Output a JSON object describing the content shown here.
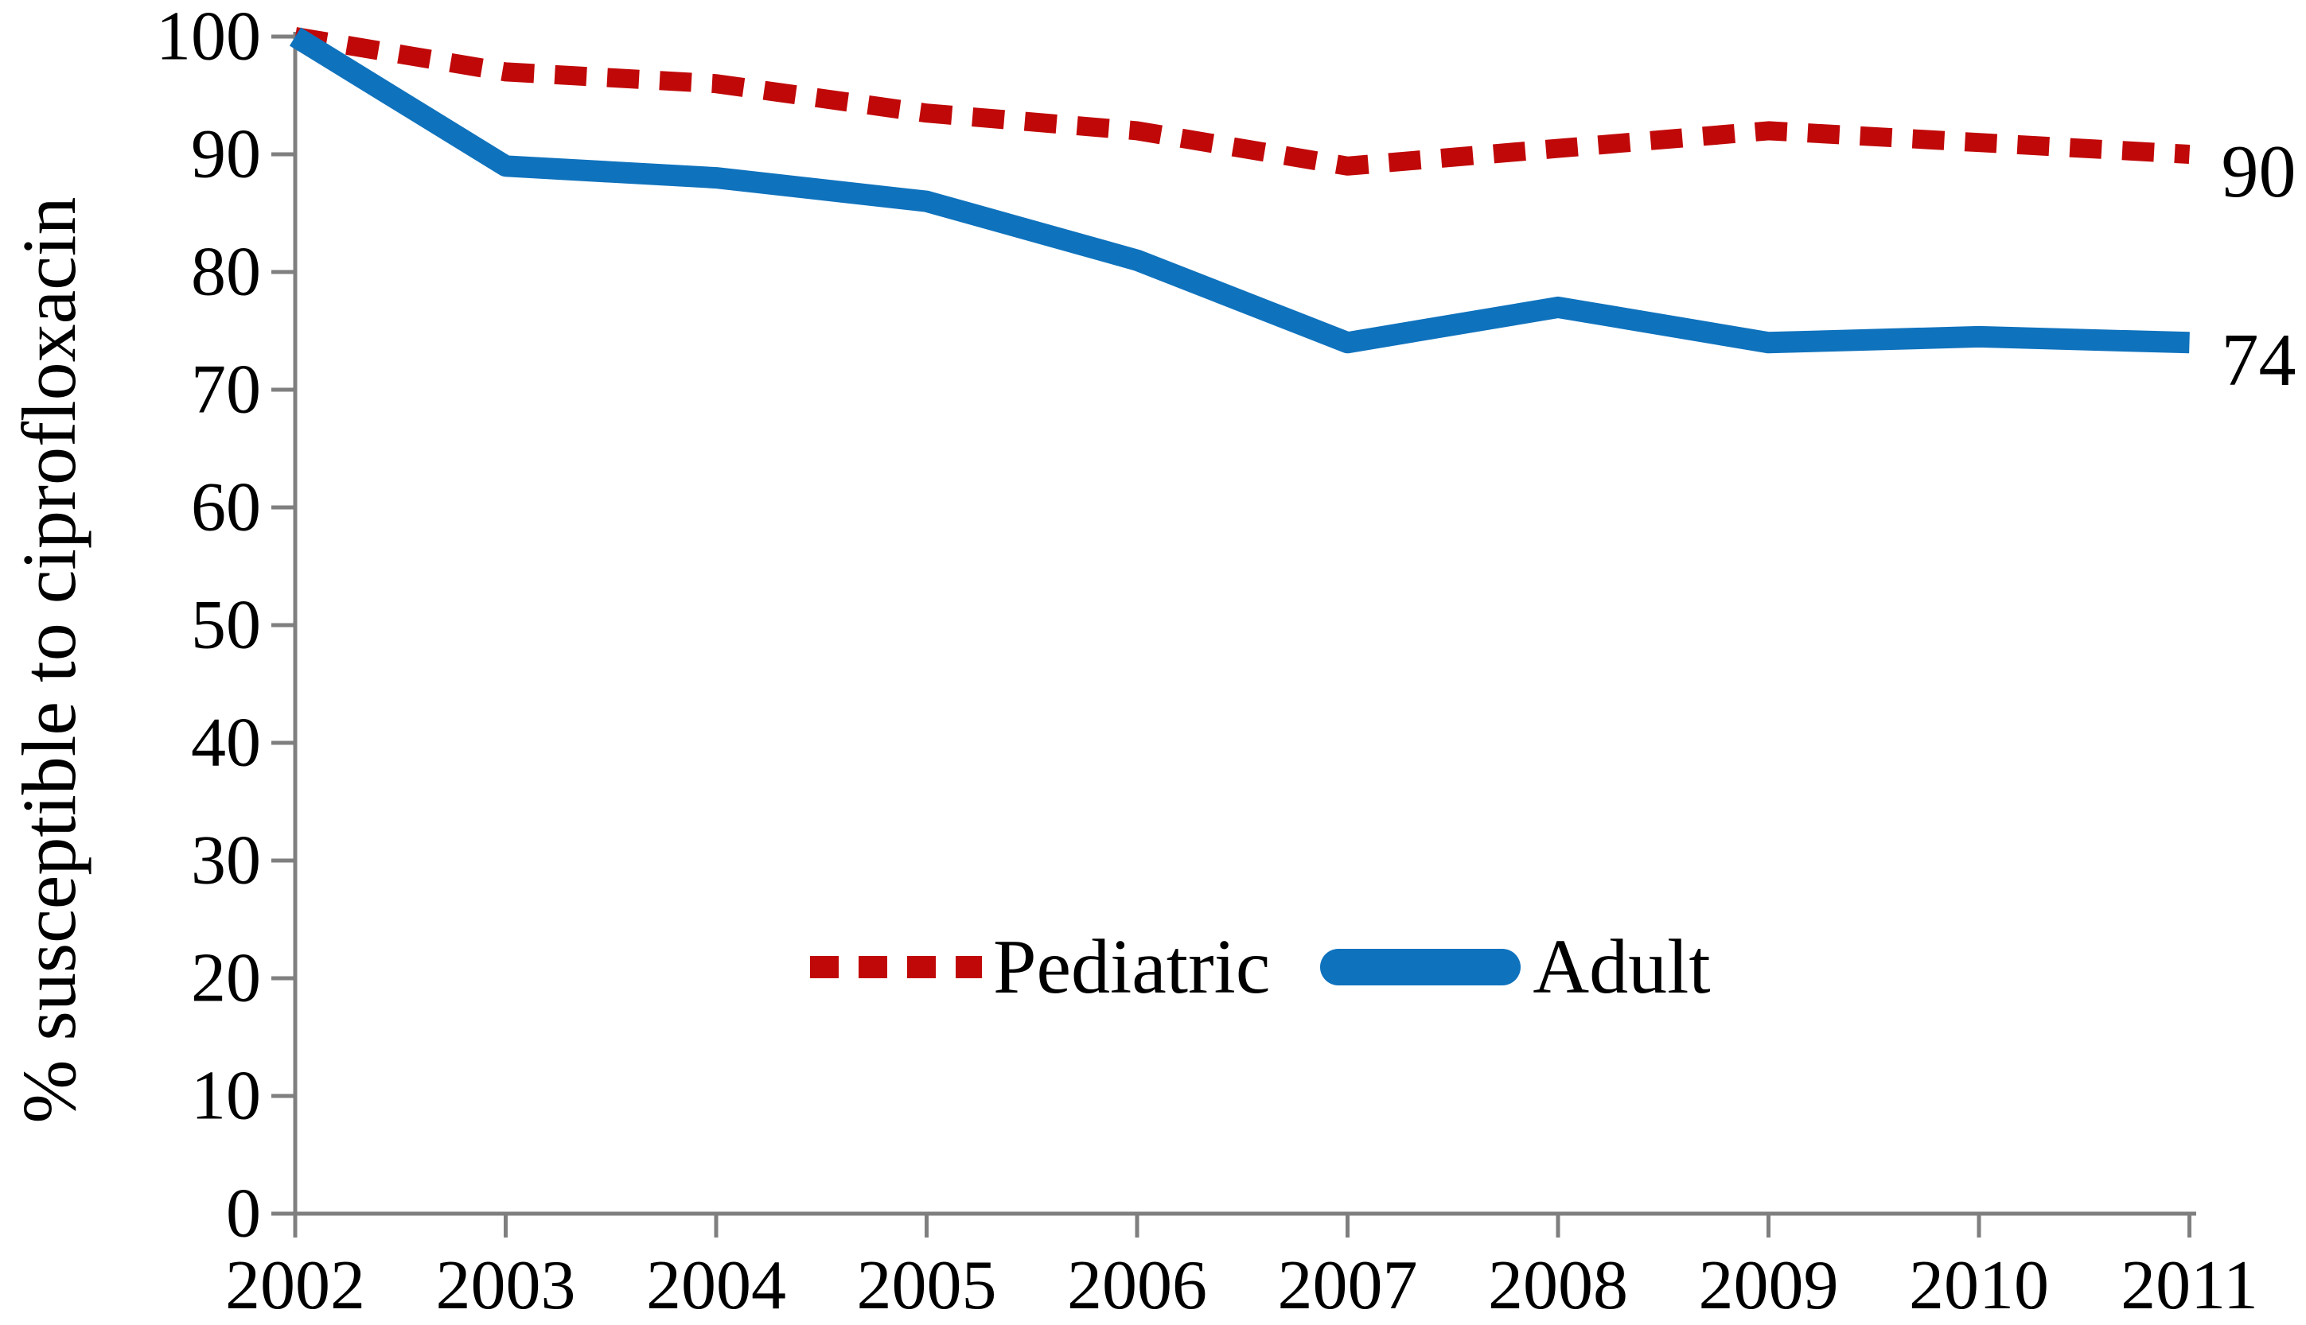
{
  "chart_data": {
    "type": "line",
    "title": "",
    "xlabel": "",
    "ylabel": "% susceptible to ciprofloxacin",
    "x": [
      "2002",
      "2003",
      "2004",
      "2005",
      "2006",
      "2007",
      "2008",
      "2009",
      "2010",
      "2011"
    ],
    "yticks": [
      "0",
      "10",
      "20",
      "30",
      "40",
      "50",
      "60",
      "70",
      "80",
      "90",
      "100"
    ],
    "ylim": [
      0,
      100
    ],
    "grid": false,
    "legend_position": "bottom-center",
    "axis_color": "#7f7f7f",
    "tick_label_color": "#000000",
    "series": [
      {
        "name": "Pediatric",
        "style": "dashed",
        "color": "#c00808",
        "values": [
          100,
          97,
          96,
          93.5,
          92,
          89,
          90.5,
          92,
          91,
          90
        ],
        "end_label": "90"
      },
      {
        "name": "Adult",
        "style": "solid",
        "color": "#0f72bd",
        "values": [
          100,
          89,
          88,
          86,
          81,
          74,
          77,
          74,
          74.5,
          74
        ],
        "end_label": "74"
      }
    ]
  }
}
